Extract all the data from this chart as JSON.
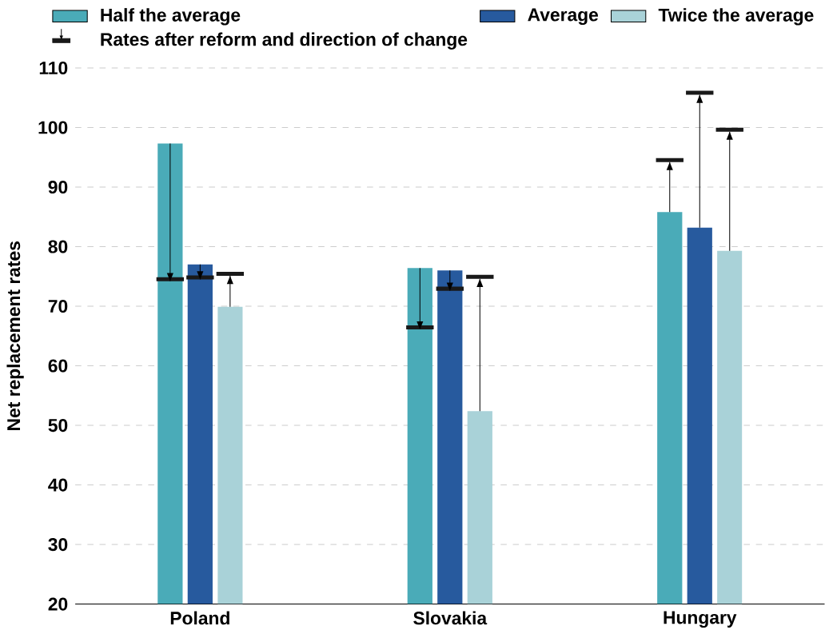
{
  "chart_data": {
    "type": "bar",
    "ylabel": "Net replacement rates",
    "categories": [
      "Poland",
      "Slovakia",
      "Hungary"
    ],
    "series": [
      {
        "name": "Half the average",
        "color": "#4aabb8",
        "values": [
          97.3,
          76.4,
          85.8
        ],
        "errors": [
          [
            74.2,
            97.3
          ],
          [
            66.1,
            76.4
          ],
          [
            85.8,
            94.2
          ]
        ]
      },
      {
        "name": "Average",
        "color": "#275a9e",
        "values": [
          77.0,
          76.0,
          83.2
        ],
        "errors": [
          [
            74.5,
            77.0
          ],
          [
            72.6,
            76.0
          ],
          [
            83.2,
            105.5
          ]
        ]
      },
      {
        "name": "Twice the average",
        "color": "#a9d2d8",
        "values": [
          69.9,
          52.4,
          79.3
        ],
        "errors": [
          [
            69.9,
            75.1
          ],
          [
            52.4,
            74.6
          ],
          [
            79.3,
            99.3
          ]
        ]
      }
    ],
    "annotations": [
      "Rates after reform and direction of change"
    ],
    "ylim": [
      20,
      110
    ],
    "yticks": [
      20,
      30,
      40,
      50,
      60,
      70,
      80,
      90,
      100,
      110
    ],
    "grid": "y",
    "legend": "top right"
  }
}
